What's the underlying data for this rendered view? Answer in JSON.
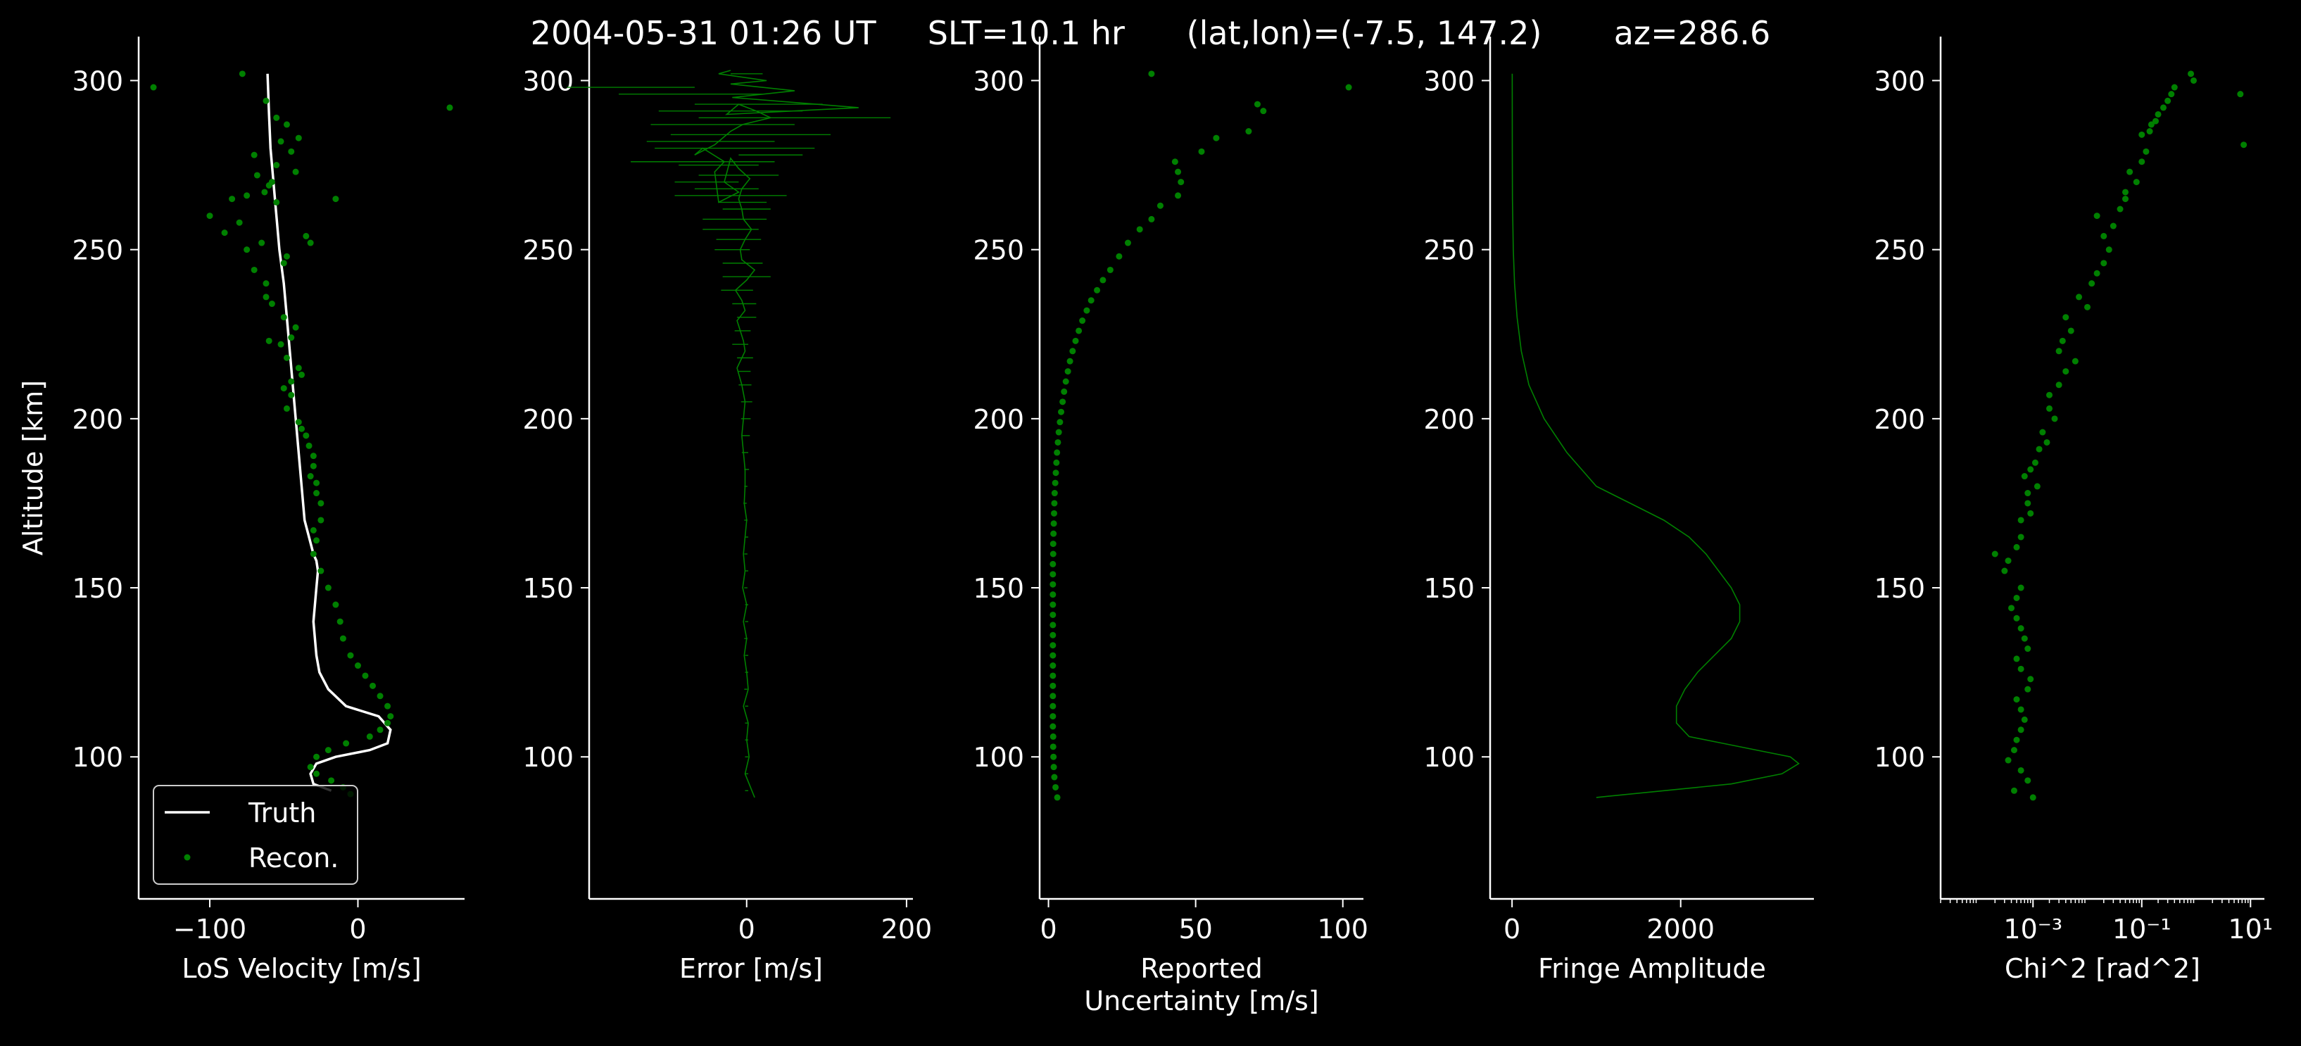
{
  "title": "2004-05-31 01:26 UT     SLT=10.1 hr      (lat,lon)=(-7.5, 147.2)       az=286.6",
  "colors": {
    "background": "#000000",
    "foreground": "#ffffff",
    "recon": "#008000",
    "truth": "#ffffff"
  },
  "chart_data": [
    {
      "type": "line",
      "xlabel": "LoS Velocity [m/s]",
      "ylabel": "Altitude [km]",
      "xlim": [
        -148,
        72
      ],
      "ylim": [
        58,
        313
      ],
      "xticks": [
        -100,
        0
      ],
      "xtick_labels": [
        "−100",
        "0"
      ],
      "yticks": [
        100,
        150,
        200,
        250,
        300
      ],
      "ytick_labels": [
        "100",
        "150",
        "200",
        "250",
        "300"
      ],
      "legend": {
        "placement": "lower-left",
        "entries": [
          "Truth",
          "Recon."
        ]
      },
      "series": [
        {
          "name": "Truth",
          "kind": "line",
          "x": [
            -61,
            -60,
            -59,
            -57,
            -55,
            -53,
            -50,
            -48,
            -46,
            -44,
            -42,
            -40,
            -38,
            -36,
            -33,
            -30,
            -28,
            -27,
            -28,
            -30,
            -28,
            -26,
            -20,
            -8,
            14,
            22,
            20,
            8,
            -15,
            -28,
            -32,
            -30,
            -18
          ],
          "y": [
            302,
            290,
            280,
            270,
            260,
            250,
            240,
            230,
            220,
            210,
            200,
            190,
            180,
            170,
            165,
            160,
            158,
            155,
            150,
            140,
            130,
            125,
            120,
            115,
            112,
            108,
            104,
            102,
            100,
            98,
            95,
            92,
            90
          ]
        },
        {
          "name": "Recon.",
          "kind": "scatter",
          "x": [
            -138,
            -78,
            -62,
            -55,
            -48,
            -40,
            -52,
            -45,
            -70,
            -55,
            -42,
            -58,
            -68,
            -60,
            -63,
            -55,
            -75,
            -85,
            -90,
            -100,
            -80,
            -65,
            -75,
            -48,
            -50,
            -70,
            -15,
            -35,
            -32,
            -62,
            -62,
            -58,
            -50,
            -42,
            -45,
            -52,
            -60,
            -48,
            -40,
            -38,
            -45,
            -50,
            -45,
            -48,
            -40,
            -38,
            -35,
            -33,
            -30,
            -30,
            -32,
            -28,
            -28,
            -25,
            -25,
            -30,
            -28,
            -30,
            -25,
            -20,
            -15,
            -12,
            -10,
            -5,
            0,
            5,
            10,
            15,
            20,
            22,
            20,
            15,
            8,
            -8,
            -20,
            -28,
            -32,
            -28,
            -18,
            -10,
            -5,
            62
          ],
          "y": [
            298,
            302,
            294,
            289,
            287,
            283,
            282,
            279,
            278,
            275,
            273,
            270,
            272,
            269,
            267,
            264,
            266,
            265,
            255,
            260,
            258,
            252,
            250,
            248,
            246,
            244,
            265,
            254,
            252,
            240,
            236,
            234,
            230,
            227,
            224,
            222,
            223,
            218,
            215,
            213,
            211,
            209,
            207,
            203,
            199,
            197,
            195,
            192,
            189,
            186,
            183,
            181,
            178,
            175,
            170,
            167,
            164,
            160,
            155,
            150,
            145,
            140,
            135,
            130,
            127,
            124,
            121,
            118,
            115,
            112,
            110,
            108,
            106,
            104,
            102,
            100,
            97,
            95,
            93,
            91,
            89,
            292
          ]
        }
      ]
    },
    {
      "type": "line",
      "xlabel": "Error [m/s]",
      "xlim": [
        -197,
        208
      ],
      "ylim": [
        58,
        313
      ],
      "xticks": [
        0,
        200
      ],
      "xtick_labels": [
        "0",
        "200"
      ],
      "yticks": [
        100,
        150,
        200,
        250,
        300
      ],
      "ytick_labels": [
        "100",
        "150",
        "200",
        "250",
        "300"
      ],
      "series": [
        {
          "name": "",
          "kind": "line",
          "x": [
            10,
            -2,
            3,
            0,
            2,
            -4,
            2,
            0,
            -3,
            0,
            -4,
            0,
            -5,
            -2,
            -4,
            -2,
            0,
            -3,
            -2,
            -2,
            -4,
            -6,
            -4,
            -2,
            -6,
            -12,
            -2,
            -4,
            -8,
            -12,
            -2,
            -6,
            -14,
            0,
            10,
            -6,
            -8,
            -2,
            6,
            -4,
            -6,
            -10,
            -6,
            4,
            -10,
            -20,
            -28,
            -10,
            -35,
            -40,
            -28,
            -55,
            -65,
            -40,
            -30,
            -20,
            -5,
            30,
            12,
            -10,
            -25,
            140,
            -18,
            60,
            -20,
            25,
            -35,
            -20
          ],
          "y": [
            88,
            95,
            100,
            105,
            110,
            115,
            120,
            125,
            130,
            135,
            140,
            145,
            150,
            155,
            160,
            165,
            170,
            175,
            180,
            185,
            190,
            195,
            200,
            205,
            210,
            215,
            220,
            223,
            226,
            229,
            232,
            235,
            238,
            241,
            244,
            247,
            250,
            253,
            256,
            259,
            262,
            265,
            268,
            271,
            274,
            277,
            270,
            267,
            264,
            273,
            276,
            280,
            278,
            281,
            283,
            285,
            287,
            289,
            291,
            293,
            290,
            292,
            295,
            297,
            299,
            300,
            302,
            303
          ]
        },
        {
          "name": "",
          "kind": "errorbar",
          "y": [
            302,
            298,
            296,
            293,
            291,
            289,
            287,
            284,
            282,
            280,
            278,
            276,
            275,
            272,
            270,
            268,
            266,
            264,
            262,
            259,
            256,
            253,
            250,
            246,
            242,
            238,
            234,
            230,
            226,
            222,
            218,
            214,
            210,
            205,
            200,
            195,
            190,
            185,
            180,
            175,
            170,
            165,
            160,
            155,
            150,
            145,
            140,
            135,
            130,
            125,
            120,
            115,
            110,
            105,
            100,
            95,
            90
          ],
          "x": [
            0,
            -145,
            -70,
            15,
            -20,
            60,
            -30,
            5,
            -45,
            -15,
            30,
            -55,
            -35,
            -10,
            -50,
            -25,
            -20,
            -5,
            0,
            -15,
            -20,
            -10,
            -18,
            -5,
            0,
            -12,
            -3,
            0,
            -5,
            -8,
            -2,
            -3,
            -2,
            0,
            -1,
            -1,
            -2,
            0,
            -1,
            -2,
            -1,
            0,
            -1,
            0,
            -1,
            0,
            0,
            -1,
            0,
            0,
            -1,
            0,
            0,
            0,
            0,
            0,
            0
          ],
          "xerr": [
            20,
            80,
            90,
            80,
            90,
            120,
            90,
            100,
            80,
            100,
            40,
            90,
            50,
            50,
            40,
            40,
            70,
            30,
            30,
            40,
            35,
            28,
            22,
            25,
            30,
            20,
            15,
            12,
            10,
            10,
            10,
            8,
            8,
            7,
            6,
            5,
            4,
            3,
            2,
            2,
            2,
            2,
            2,
            2,
            2,
            2,
            2,
            2,
            2,
            2,
            2,
            2,
            2,
            2,
            2,
            2,
            2
          ]
        }
      ]
    },
    {
      "type": "scatter",
      "xlabel": "Reported\nUncertainty [m/s]",
      "xlim": [
        -3,
        107
      ],
      "ylim": [
        58,
        313
      ],
      "xticks": [
        0,
        50,
        100
      ],
      "xtick_labels": [
        "0",
        "50",
        "100"
      ],
      "yticks": [
        100,
        150,
        200,
        250,
        300
      ],
      "ytick_labels": [
        "100",
        "150",
        "200",
        "250",
        "300"
      ],
      "series": [
        {
          "name": "",
          "kind": "scatter",
          "x": [
            3.0,
            2.4,
            2.0,
            1.8,
            1.7,
            1.6,
            1.6,
            1.5,
            1.5,
            1.5,
            1.5,
            1.5,
            1.5,
            1.5,
            1.5,
            1.5,
            1.5,
            1.5,
            1.5,
            1.5,
            1.5,
            1.5,
            1.5,
            1.5,
            1.6,
            1.6,
            1.7,
            1.8,
            1.9,
            2.0,
            2.1,
            2.3,
            2.5,
            2.7,
            2.9,
            3.2,
            3.5,
            3.9,
            4.3,
            4.8,
            5.3,
            5.9,
            6.6,
            7.3,
            8.2,
            9.2,
            10.3,
            11.5,
            13,
            14.5,
            16.5,
            18.5,
            21,
            24,
            27,
            31,
            35,
            38,
            44,
            45,
            44,
            43,
            52,
            57,
            68,
            71,
            73,
            35,
            102
          ],
          "y": [
            88,
            91,
            94,
            97,
            100,
            103,
            106,
            109,
            112,
            115,
            118,
            121,
            124,
            127,
            130,
            133,
            136,
            139,
            142,
            145,
            148,
            151,
            154,
            157,
            160,
            163,
            166,
            169,
            172,
            175,
            178,
            181,
            184,
            187,
            190,
            193,
            196,
            199,
            202,
            205,
            208,
            211,
            214,
            217,
            220,
            223,
            226,
            229,
            232,
            235,
            238,
            241,
            244,
            248,
            252,
            256,
            259,
            263,
            266,
            270,
            273,
            276,
            279,
            283,
            285,
            293,
            291,
            302,
            298
          ]
        }
      ]
    },
    {
      "type": "line",
      "xlabel": "Fringe Amplitude",
      "xlim": [
        -260,
        3580
      ],
      "ylim": [
        58,
        313
      ],
      "xticks": [
        0,
        2000
      ],
      "xtick_labels": [
        "0",
        "2000"
      ],
      "yticks": [
        100,
        150,
        200,
        250,
        300
      ],
      "ytick_labels": [
        "100",
        "150",
        "200",
        "250",
        "300"
      ],
      "series": [
        {
          "name": "",
          "kind": "line",
          "x": [
            1000,
            1800,
            2600,
            3200,
            3400,
            3300,
            2900,
            2500,
            2100,
            1950,
            1950,
            2050,
            2200,
            2400,
            2600,
            2700,
            2700,
            2600,
            2450,
            2300,
            2100,
            1800,
            1400,
            1000,
            650,
            380,
            200,
            110,
            60,
            30,
            15,
            5,
            3,
            2
          ],
          "y": [
            88,
            90,
            92,
            95,
            98,
            100,
            102,
            104,
            106,
            110,
            115,
            120,
            125,
            130,
            135,
            140,
            145,
            150,
            155,
            160,
            165,
            170,
            175,
            180,
            190,
            200,
            210,
            220,
            230,
            240,
            250,
            265,
            280,
            302
          ]
        }
      ]
    },
    {
      "type": "scatter",
      "xlabel": "Chi^2 [rad^2]",
      "xscale": "log",
      "xlim": [
        2e-05,
        18
      ],
      "ylim": [
        58,
        313
      ],
      "xticks": [
        0.001,
        0.1,
        10
      ],
      "xtick_labels": [
        "10⁻³",
        "10⁻¹",
        "10¹"
      ],
      "yticks": [
        100,
        150,
        200,
        250,
        300
      ],
      "ytick_labels": [
        "100",
        "150",
        "200",
        "250",
        "300"
      ],
      "series": [
        {
          "name": "",
          "kind": "scatter",
          "x": [
            0.001,
            0.00045,
            0.0008,
            0.0006,
            0.00035,
            0.00045,
            0.0005,
            0.0006,
            0.0007,
            0.0006,
            0.0005,
            0.0008,
            0.0009,
            0.0006,
            0.0005,
            0.0008,
            0.0007,
            0.0006,
            0.0005,
            0.0004,
            0.0005,
            0.0006,
            0.0003,
            0.0002,
            0.0005,
            0.00035,
            0.0006,
            0.0006,
            0.0009,
            0.0008,
            0.0008,
            0.0012,
            0.0007,
            0.0009,
            0.0011,
            0.0013,
            0.0018,
            0.0015,
            0.0025,
            0.002,
            0.002,
            0.003,
            0.004,
            0.006,
            0.003,
            0.0035,
            0.005,
            0.004,
            0.01,
            0.007,
            0.012,
            0.015,
            0.02,
            0.025,
            0.02,
            0.03,
            0.015,
            0.05,
            0.04,
            0.05,
            0.08,
            0.06,
            0.1,
            0.12,
            0.1,
            0.14,
            0.15,
            0.18,
            0.2,
            0.25,
            0.3,
            0.35,
            0.4,
            0.9,
            0.8,
            6.5,
            7.5
          ],
          "y": [
            88,
            90,
            93,
            96,
            99,
            102,
            105,
            108,
            111,
            114,
            117,
            120,
            123,
            126,
            129,
            132,
            135,
            138,
            141,
            144,
            147,
            150,
            155,
            160,
            162,
            158,
            165,
            170,
            172,
            175,
            178,
            180,
            183,
            185,
            187,
            191,
            193,
            196,
            200,
            203,
            207,
            210,
            214,
            217,
            220,
            223,
            226,
            230,
            233,
            236,
            240,
            243,
            246,
            250,
            254,
            257,
            260,
            265,
            262,
            267,
            270,
            273,
            276,
            279,
            284,
            285,
            287,
            288,
            290,
            292,
            294,
            296,
            298,
            300,
            302,
            296,
            281
          ]
        }
      ]
    }
  ]
}
